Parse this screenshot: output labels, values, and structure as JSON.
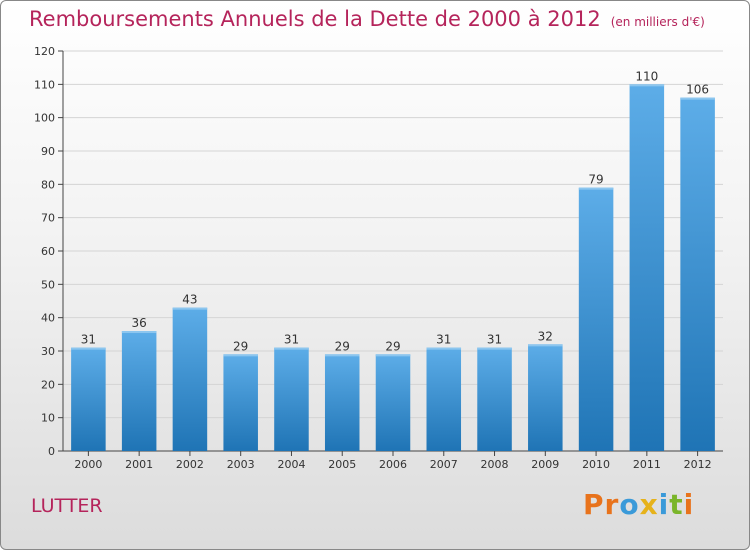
{
  "header": {
    "title": "Remboursements Annuels de la Dette de 2000 à 2012",
    "subtitle": "(en milliers d'€)"
  },
  "footer": {
    "commune": "LUTTER",
    "logo_text": "Proxiti"
  },
  "colors": {
    "title": "#b5245b",
    "bar_top": "#5dade8",
    "bar_bottom": "#1f74b5",
    "logo_letters": [
      "#e8731c",
      "#e8731c",
      "#3a9ad9",
      "#e6b21a",
      "#3a9ad9",
      "#7ab52a",
      "#e8731c"
    ]
  },
  "chart_data": {
    "type": "bar",
    "title": "Remboursements Annuels de la Dette de 2000 à 2012",
    "xlabel": "",
    "ylabel": "",
    "categories": [
      "2000",
      "2001",
      "2002",
      "2003",
      "2004",
      "2005",
      "2006",
      "2007",
      "2008",
      "2009",
      "2010",
      "2011",
      "2012"
    ],
    "values": [
      31,
      36,
      43,
      29,
      31,
      29,
      29,
      31,
      31,
      32,
      79,
      110,
      106
    ],
    "ylim": [
      0,
      120
    ],
    "yticks": [
      0,
      10,
      20,
      30,
      40,
      50,
      60,
      70,
      80,
      90,
      100,
      110,
      120
    ],
    "grid": true,
    "legend": "none"
  }
}
